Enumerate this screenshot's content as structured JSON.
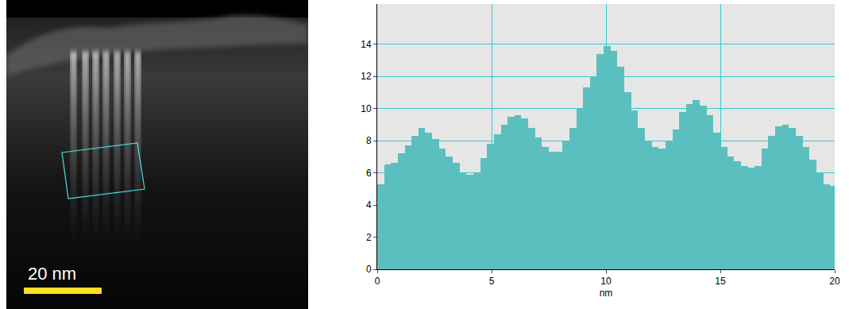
{
  "chart_data": {
    "type": "bar",
    "x_label": "nm",
    "x": [
      0.15,
      0.45,
      0.75,
      1.05,
      1.35,
      1.65,
      1.95,
      2.25,
      2.55,
      2.85,
      3.15,
      3.45,
      3.75,
      4.05,
      4.35,
      4.65,
      4.95,
      5.25,
      5.55,
      5.85,
      6.15,
      6.45,
      6.75,
      7.05,
      7.35,
      7.65,
      7.95,
      8.25,
      8.55,
      8.85,
      9.15,
      9.45,
      9.75,
      10.05,
      10.35,
      10.65,
      10.95,
      11.25,
      11.55,
      11.85,
      12.15,
      12.45,
      12.75,
      13.05,
      13.35,
      13.65,
      13.95,
      14.25,
      14.55,
      14.85,
      15.15,
      15.45,
      15.75,
      16.05,
      16.35,
      16.65,
      16.95,
      17.25,
      17.55,
      17.85,
      18.15,
      18.45,
      18.75,
      19.05,
      19.35,
      19.65,
      19.95
    ],
    "values": [
      5.3,
      6.5,
      6.6,
      7.2,
      7.7,
      8.3,
      8.8,
      8.5,
      8.1,
      7.5,
      7.0,
      6.6,
      6.0,
      5.9,
      6.0,
      6.9,
      7.8,
      8.4,
      9.0,
      9.5,
      9.6,
      9.4,
      8.8,
      8.2,
      7.6,
      7.3,
      7.3,
      8.0,
      8.8,
      10.0,
      11.3,
      12.0,
      13.4,
      13.9,
      13.6,
      12.6,
      11.0,
      9.9,
      8.8,
      8.0,
      7.6,
      7.5,
      8.0,
      8.7,
      9.8,
      10.3,
      10.5,
      10.2,
      9.6,
      8.5,
      7.6,
      7.0,
      6.7,
      6.4,
      6.3,
      6.4,
      7.5,
      8.3,
      8.9,
      9.0,
      8.8,
      8.3,
      7.6,
      6.8,
      6.0,
      5.3,
      5.2
    ],
    "color": "#5bbfbf",
    "xlim": [
      0,
      20
    ],
    "xticks": [
      0,
      5,
      10,
      15,
      20
    ],
    "ylim": [
      0,
      16.5
    ],
    "yticks": [
      0,
      2,
      4,
      6,
      8,
      10,
      12,
      14
    ],
    "grid": true
  },
  "image": {
    "scale_bar": "20 nm"
  }
}
